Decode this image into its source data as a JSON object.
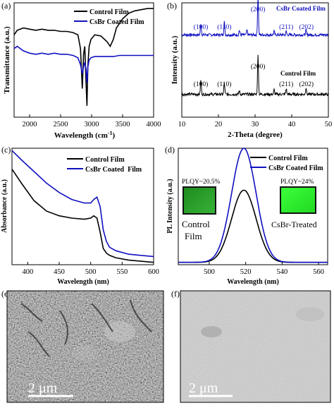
{
  "chart_data": [
    {
      "panel": "(a)",
      "type": "line",
      "xlabel": "Wavelength (cm",
      "xlabel_sup": "-1",
      "xlabel_end": ")",
      "ylabel": "Transmittance (a.u.)",
      "xlim": [
        1750,
        4000
      ],
      "ylim": [
        0,
        1
      ],
      "xticks": [
        "2000",
        "2500",
        "3000",
        "3500",
        "4000"
      ],
      "xtick_values": [
        2000,
        2500,
        3000,
        3500,
        4000
      ],
      "legend": "top-center",
      "series": [
        {
          "name": "Control Film",
          "color": "#000000",
          "x": [
            1750,
            1800,
            1900,
            2000,
            2100,
            2200,
            2300,
            2400,
            2500,
            2600,
            2700,
            2780,
            2820,
            2850,
            2870,
            2890,
            2910,
            2925,
            2940,
            2960,
            2990,
            3050,
            3150,
            3250,
            3300,
            3350,
            3400,
            3500,
            3600,
            3700,
            3800,
            3900,
            4000
          ],
          "y": [
            0.72,
            0.76,
            0.78,
            0.77,
            0.76,
            0.77,
            0.76,
            0.76,
            0.75,
            0.75,
            0.74,
            0.72,
            0.6,
            0.25,
            0.55,
            0.62,
            0.3,
            0.1,
            0.45,
            0.62,
            0.68,
            0.72,
            0.71,
            0.66,
            0.62,
            0.68,
            0.78,
            0.86,
            0.91,
            0.93,
            0.94,
            0.95,
            0.95
          ]
        },
        {
          "name": "CsBr Coated Film",
          "color": "#1010c0",
          "x": [
            1750,
            1800,
            1900,
            2000,
            2100,
            2200,
            2300,
            2400,
            2500,
            2600,
            2700,
            2780,
            2820,
            2850,
            2870,
            2890,
            2910,
            2925,
            2940,
            2960,
            2990,
            3050,
            3150,
            3250,
            3350,
            3450,
            3550,
            3650,
            3750,
            3850,
            3950,
            4000
          ],
          "y": [
            0.6,
            0.62,
            0.58,
            0.56,
            0.55,
            0.56,
            0.55,
            0.56,
            0.55,
            0.55,
            0.54,
            0.52,
            0.46,
            0.38,
            0.44,
            0.48,
            0.42,
            0.3,
            0.44,
            0.5,
            0.52,
            0.53,
            0.53,
            0.53,
            0.53,
            0.54,
            0.54,
            0.54,
            0.54,
            0.54,
            0.54,
            0.54
          ]
        }
      ]
    },
    {
      "panel": "(b)",
      "type": "line",
      "xlabel": "2-Theta (degree)",
      "ylabel": "Intensity (a.u.)",
      "xlim": [
        10,
        50
      ],
      "xticks": [
        "10",
        "20",
        "30",
        "40",
        "50"
      ],
      "xtick_values": [
        10,
        20,
        30,
        40,
        50
      ],
      "series": [
        {
          "name": "CsBr Coated Film",
          "color": "#1010c0",
          "baseline": 0.72,
          "peaks": [
            [
              15.2,
              0.1
            ],
            [
              21.6,
              0.12
            ],
            [
              25.7,
              0.04
            ],
            [
              27.8,
              0.04
            ],
            [
              30.8,
              0.34
            ],
            [
              35.2,
              0.03
            ],
            [
              38.5,
              0.03
            ],
            [
              43.9,
              0.04
            ]
          ]
        },
        {
          "name": "Control Film",
          "color": "#000000",
          "baseline": 0.2,
          "peaks": [
            [
              15.2,
              0.12
            ],
            [
              21.6,
              0.1
            ],
            [
              25.7,
              0.03
            ],
            [
              30.8,
              0.34
            ],
            [
              35.2,
              0.04
            ],
            [
              38.5,
              0.05
            ],
            [
              43.9,
              0.06
            ]
          ]
        }
      ],
      "annotations": {
        "blue": [
          {
            "label": "(100)",
            "x": 15.2
          },
          {
            "label": "(110)",
            "x": 21.6
          },
          {
            "label": "(200)",
            "x": 30.8
          },
          {
            "label": "(211)",
            "x": 38.5
          },
          {
            "label": "(202)",
            "x": 44.0
          }
        ],
        "black": [
          {
            "label": "(100)",
            "x": 15.2
          },
          {
            "label": "(110)",
            "x": 21.6
          },
          {
            "label": "(200)",
            "x": 30.8
          },
          {
            "label": "(211)",
            "x": 38.5
          },
          {
            "label": "(202)",
            "x": 44.0
          }
        ]
      }
    },
    {
      "panel": "(c)",
      "type": "line",
      "xlabel": "Wavelength (nm)",
      "ylabel": "Absorbance (a.u.)",
      "xlim": [
        375,
        600
      ],
      "ylim": [
        0,
        1
      ],
      "xticks": [
        "400",
        "450",
        "500",
        "550",
        "600"
      ],
      "xtick_values": [
        400,
        450,
        500,
        550,
        600
      ],
      "legend": "top-right",
      "series": [
        {
          "name": "Control Film",
          "color": "#000000",
          "x": [
            375,
            390,
            410,
            430,
            450,
            470,
            490,
            500,
            505,
            510,
            515,
            520,
            525,
            530,
            540,
            560,
            580,
            600
          ],
          "y": [
            0.82,
            0.7,
            0.55,
            0.46,
            0.42,
            0.4,
            0.39,
            0.4,
            0.42,
            0.4,
            0.28,
            0.14,
            0.1,
            0.08,
            0.06,
            0.04,
            0.03,
            0.02
          ]
        },
        {
          "name": "CsBr Coated  Film",
          "color": "#1010c0",
          "x": [
            375,
            390,
            410,
            430,
            450,
            470,
            490,
            500,
            505,
            510,
            515,
            520,
            525,
            530,
            540,
            560,
            580,
            600
          ],
          "y": [
            0.98,
            0.9,
            0.8,
            0.7,
            0.62,
            0.56,
            0.53,
            0.53,
            0.56,
            0.58,
            0.5,
            0.3,
            0.2,
            0.15,
            0.12,
            0.09,
            0.08,
            0.07
          ]
        }
      ]
    },
    {
      "panel": "(d)",
      "type": "line",
      "xlabel": "Wavelength (nm)",
      "ylabel": "PL Intensity (a.u.)",
      "xlim": [
        483,
        565
      ],
      "ylim": [
        0,
        1
      ],
      "xticks": [
        "500",
        "520",
        "540",
        "560"
      ],
      "xtick_values": [
        500,
        520,
        540,
        560
      ],
      "legend": "top-right",
      "peak_center": 519,
      "series": [
        {
          "name": "Control Film",
          "color": "#000000",
          "amplitude": 0.62,
          "width": 9.5
        },
        {
          "name": "CsBr Coated Film",
          "color": "#1010c0",
          "amplitude": 0.98,
          "width": 9.5
        }
      ],
      "insets": [
        {
          "plqy": "PLQY~20.5%",
          "caption_line1": "Control",
          "caption_line2": "Film"
        },
        {
          "plqy": "PLQY~24%",
          "caption_line1": "CsBr-Treated",
          "caption_line2": ""
        }
      ]
    },
    {
      "panel": "(e)",
      "type": "image",
      "scale_bar": "2 μm"
    },
    {
      "panel": "(f)",
      "type": "image",
      "scale_bar": "2 μm"
    }
  ]
}
